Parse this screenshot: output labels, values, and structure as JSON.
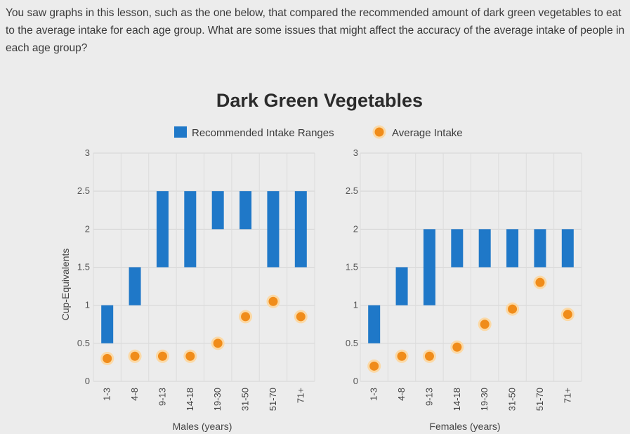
{
  "question": "You saw graphs in this lesson, such as the one below, that compared the recommended amount of dark green vegetables to eat to the average intake for each age group. What are some issues that might affect the accuracy of the average intake of people in each age group?",
  "chart_data": {
    "type": "bar",
    "title": "Dark Green Vegetables",
    "legend": {
      "recommended": "Recommended Intake Ranges",
      "average": "Average Intake",
      "placement": "top"
    },
    "ylabel": "Cup-Equivalents",
    "ylim": [
      0,
      3
    ],
    "yticks": [
      0,
      0.5,
      1,
      1.5,
      2,
      2.5,
      3
    ],
    "ytick_labels": [
      "0",
      "0.5",
      "1",
      "1.5",
      "2",
      "2.5",
      "3"
    ],
    "colors": {
      "recommended": "#1f78c8",
      "average": "#f08c1a"
    },
    "panels": [
      {
        "xlabel": "Males (years)",
        "categories": [
          "1-3",
          "4-8",
          "9-13",
          "14-18",
          "19-30",
          "31-50",
          "51-70",
          "71+"
        ],
        "recommended_ranges": [
          [
            0.5,
            1
          ],
          [
            1,
            1.5
          ],
          [
            1.5,
            2.5
          ],
          [
            1.5,
            2.5
          ],
          [
            2,
            2.5
          ],
          [
            2,
            2.5
          ],
          [
            1.5,
            2.5
          ],
          [
            1.5,
            2.5
          ]
        ],
        "average_intake": [
          0.3,
          0.33,
          0.33,
          0.33,
          0.5,
          0.85,
          1.05,
          0.85
        ]
      },
      {
        "xlabel": "Females (years)",
        "categories": [
          "1-3",
          "4-8",
          "9-13",
          "14-18",
          "19-30",
          "31-50",
          "51-70",
          "71+"
        ],
        "recommended_ranges": [
          [
            0.5,
            1
          ],
          [
            1,
            1.5
          ],
          [
            1,
            2
          ],
          [
            1.5,
            2
          ],
          [
            1.5,
            2
          ],
          [
            1.5,
            2
          ],
          [
            1.5,
            2
          ],
          [
            1.5,
            2
          ]
        ],
        "average_intake": [
          0.2,
          0.33,
          0.33,
          0.45,
          0.75,
          0.95,
          1.3,
          0.88
        ]
      }
    ]
  }
}
